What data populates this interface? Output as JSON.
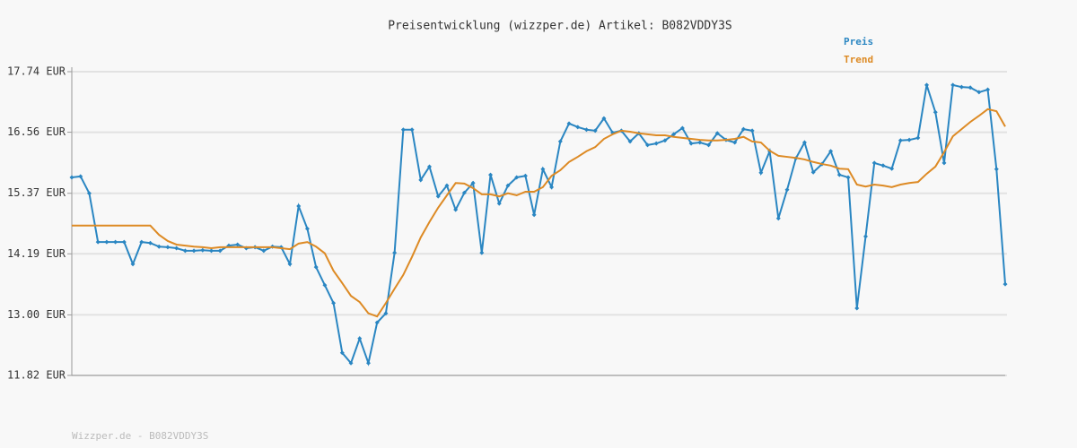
{
  "chart_data": {
    "type": "line",
    "title": "Preisentwicklung (wizzper.de) Artikel: B082VDDY3S",
    "footer": "Wizzper.de - B082VDDY3S",
    "ylim": [
      11.82,
      17.74
    ],
    "yticks": [
      {
        "value": 11.82,
        "label": "11.82 EUR"
      },
      {
        "value": 13.0,
        "label": "13.00 EUR"
      },
      {
        "value": 14.19,
        "label": "14.19 EUR"
      },
      {
        "value": 15.37,
        "label": "15.37 EUR"
      },
      {
        "value": 16.56,
        "label": "16.56 EUR"
      },
      {
        "value": 17.74,
        "label": "17.74 EUR"
      }
    ],
    "grid": true,
    "legend": "top-right",
    "series": [
      {
        "name": "Preis",
        "color": "#2a86c2",
        "markers": true,
        "values": [
          15.68,
          15.7,
          15.37,
          14.42,
          14.42,
          14.42,
          14.42,
          13.99,
          14.42,
          14.4,
          14.33,
          14.32,
          14.3,
          14.25,
          14.25,
          14.26,
          14.25,
          14.25,
          14.35,
          14.37,
          14.3,
          14.32,
          14.25,
          14.33,
          14.32,
          13.99,
          15.12,
          14.68,
          13.93,
          13.58,
          13.23,
          12.26,
          12.06,
          12.54,
          12.06,
          12.85,
          13.03,
          14.21,
          16.61,
          16.61,
          15.63,
          15.89,
          15.31,
          15.52,
          15.05,
          15.38,
          15.57,
          14.21,
          15.73,
          15.17,
          15.52,
          15.68,
          15.71,
          14.95,
          15.84,
          15.49,
          16.38,
          16.73,
          16.66,
          16.61,
          16.59,
          16.83,
          16.55,
          16.59,
          16.38,
          16.54,
          16.31,
          16.34,
          16.4,
          16.52,
          16.64,
          16.34,
          16.36,
          16.31,
          16.54,
          16.41,
          16.36,
          16.62,
          16.59,
          15.77,
          16.19,
          14.88,
          15.44,
          16.05,
          16.36,
          15.78,
          15.94,
          16.19,
          15.73,
          15.68,
          13.13,
          14.53,
          15.96,
          15.91,
          15.85,
          16.4,
          16.41,
          16.45,
          17.48,
          16.95,
          15.96,
          17.48,
          17.44,
          17.43,
          17.34,
          17.39,
          15.84,
          13.6
        ]
      },
      {
        "name": "Trend",
        "color": "#dd8a24",
        "markers": false,
        "values": [
          14.74,
          14.74,
          14.74,
          14.74,
          14.74,
          14.74,
          14.74,
          14.74,
          14.74,
          14.74,
          14.56,
          14.44,
          14.37,
          14.35,
          14.33,
          14.32,
          14.3,
          14.32,
          14.32,
          14.32,
          14.32,
          14.32,
          14.32,
          14.32,
          14.3,
          14.28,
          14.39,
          14.42,
          14.33,
          14.2,
          13.86,
          13.62,
          13.37,
          13.25,
          13.03,
          12.97,
          13.23,
          13.51,
          13.78,
          14.13,
          14.51,
          14.81,
          15.09,
          15.33,
          15.57,
          15.56,
          15.47,
          15.35,
          15.35,
          15.31,
          15.37,
          15.33,
          15.4,
          15.4,
          15.49,
          15.71,
          15.82,
          15.98,
          16.08,
          16.19,
          16.27,
          16.43,
          16.52,
          16.59,
          16.57,
          16.54,
          16.52,
          16.5,
          16.5,
          16.47,
          16.45,
          16.43,
          16.41,
          16.4,
          16.4,
          16.41,
          16.43,
          16.47,
          16.38,
          16.36,
          16.2,
          16.1,
          16.08,
          16.06,
          16.03,
          15.98,
          15.94,
          15.91,
          15.85,
          15.84,
          15.54,
          15.5,
          15.54,
          15.52,
          15.49,
          15.54,
          15.57,
          15.59,
          15.75,
          15.89,
          16.17,
          16.48,
          16.62,
          16.76,
          16.88,
          17.01,
          16.97,
          16.67
        ]
      }
    ]
  }
}
